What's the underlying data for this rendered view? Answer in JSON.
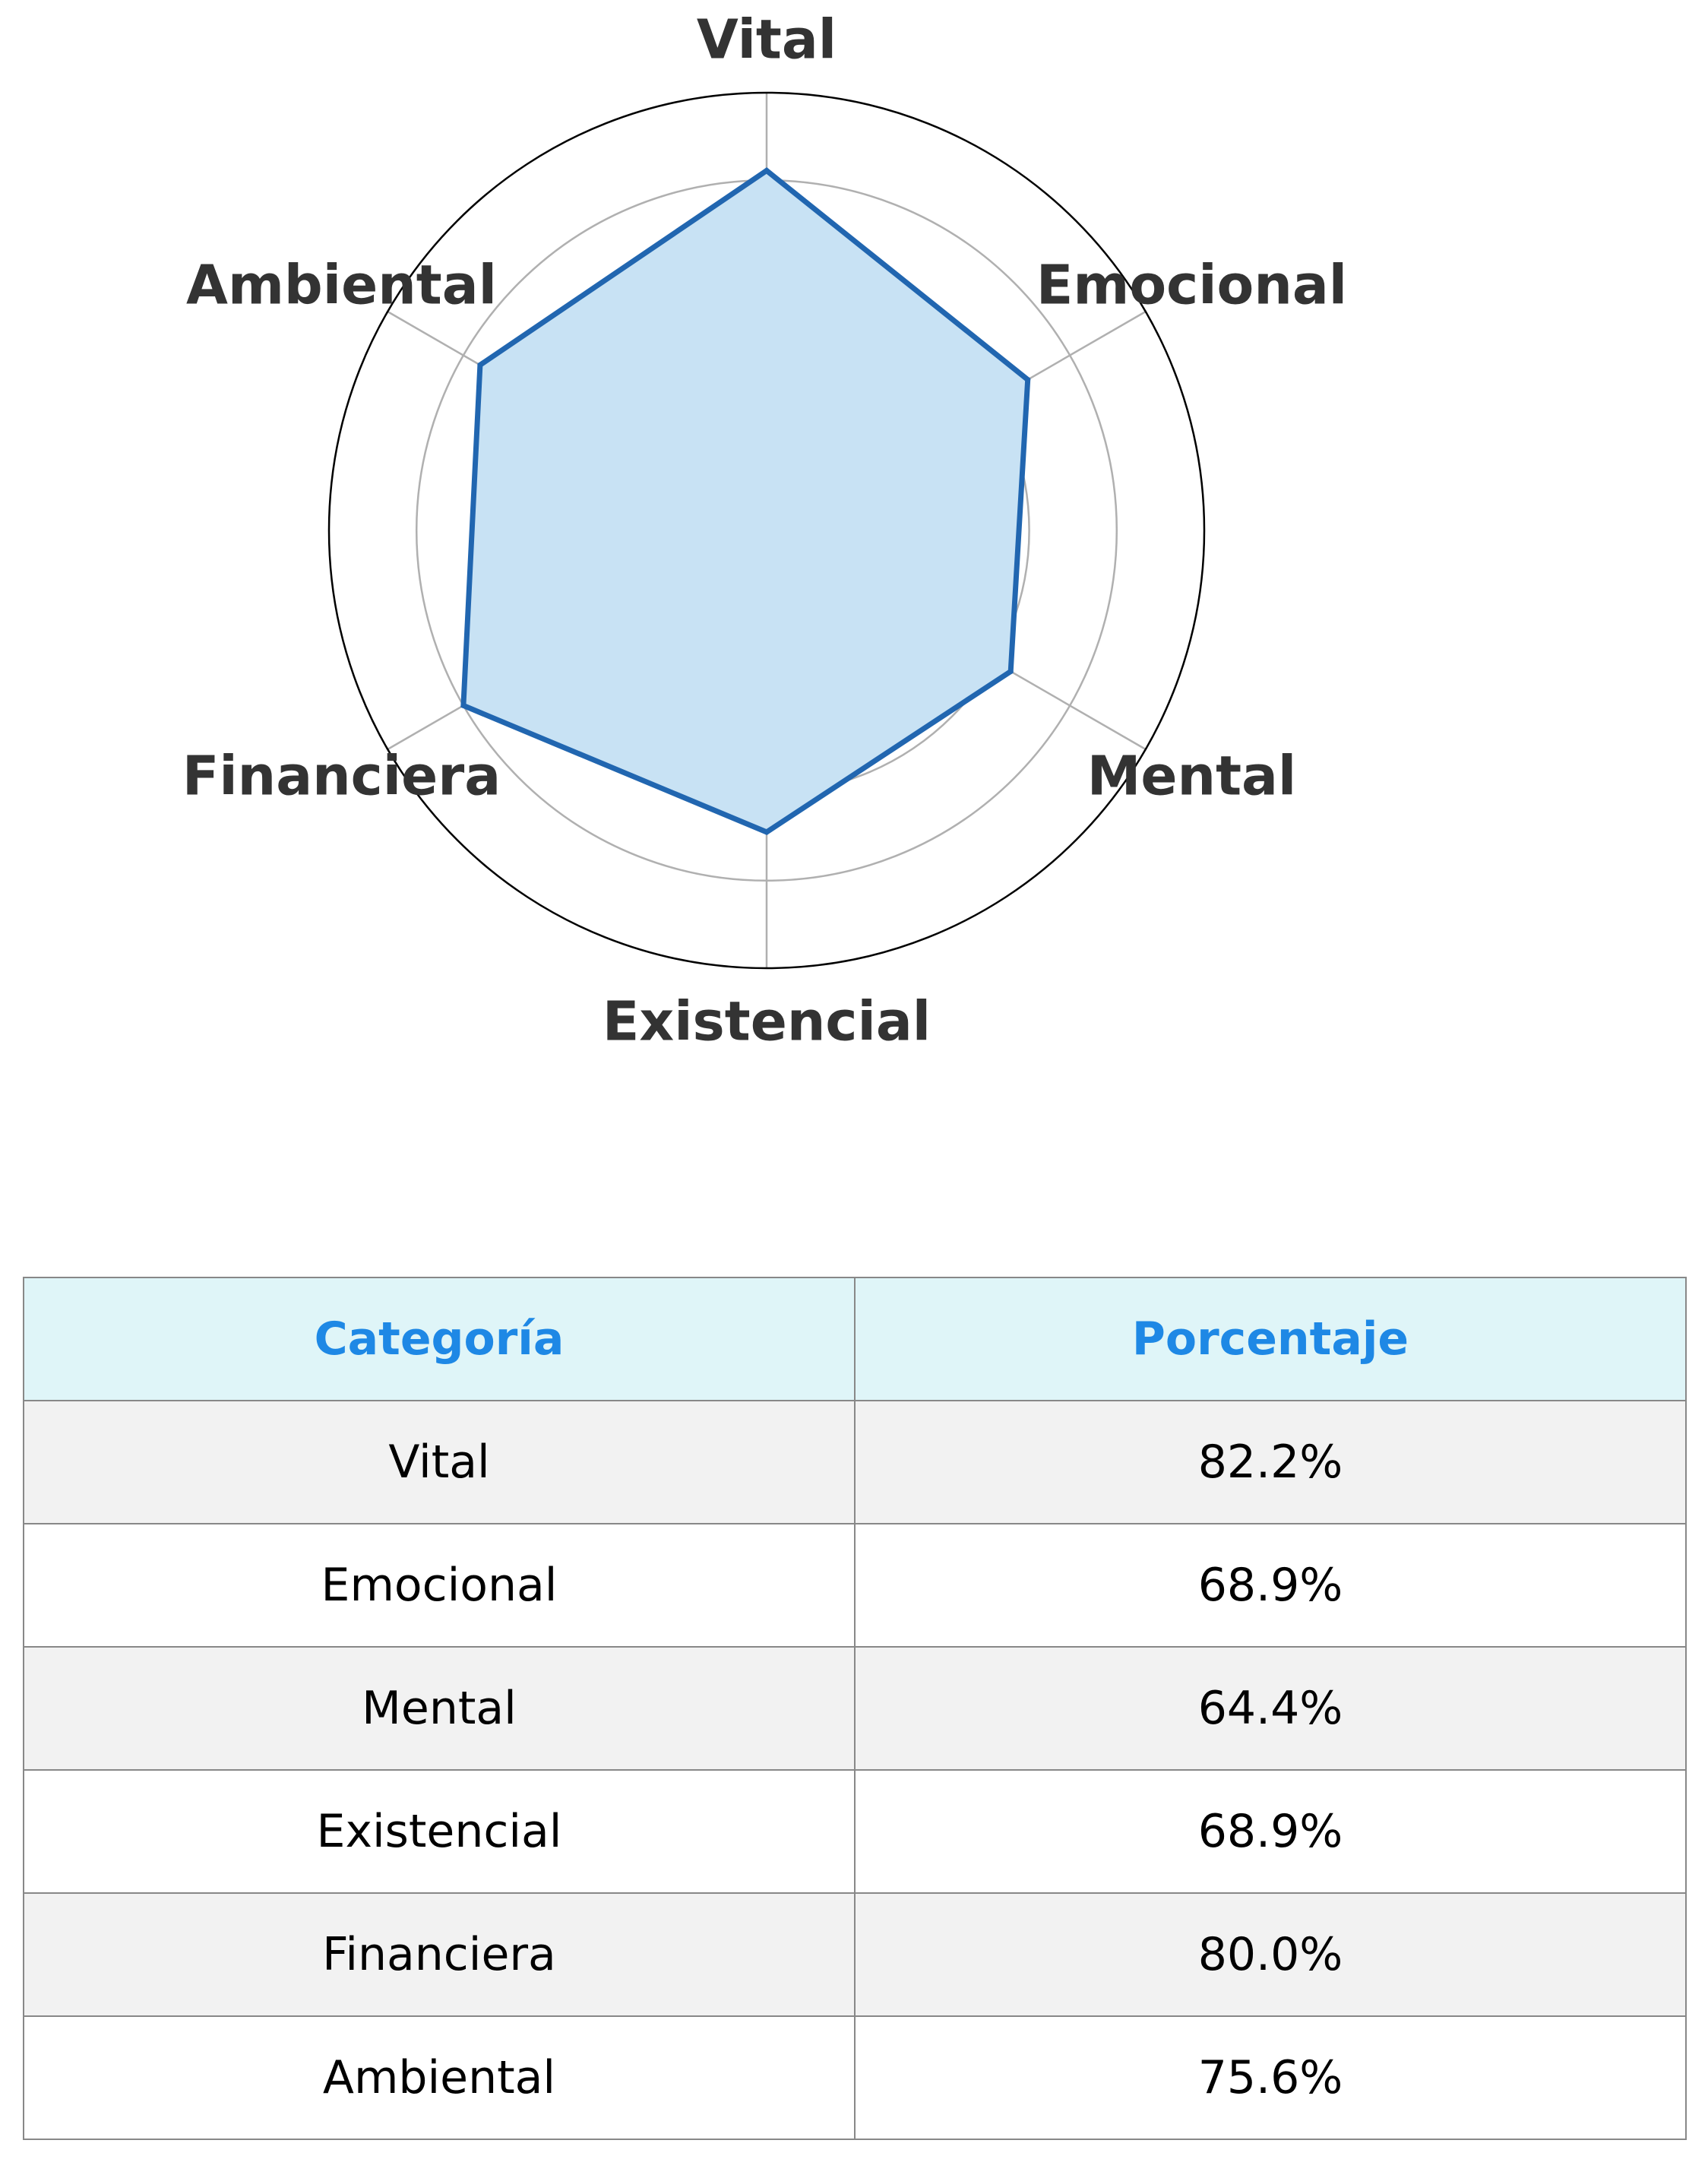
{
  "chart_data": {
    "type": "radar",
    "categories": [
      "Vital",
      "Emocional",
      "Mental",
      "Existencial",
      "Financiera",
      "Ambiental"
    ],
    "values": [
      82.2,
      68.9,
      64.4,
      68.9,
      80.0,
      75.6
    ],
    "rlim": [
      0,
      100
    ],
    "grid": true,
    "colors": {
      "line": "#2166b0",
      "fill": "#c8e2f4",
      "grid": "#b0b0b0",
      "outer": "#000000"
    }
  },
  "table": {
    "headers": [
      "Categoría",
      "Porcentaje"
    ],
    "rows": [
      [
        "Vital",
        "82.2%"
      ],
      [
        "Emocional",
        "68.9%"
      ],
      [
        "Mental",
        "64.4%"
      ],
      [
        "Existencial",
        "68.9%"
      ],
      [
        "Financiera",
        "80.0%"
      ],
      [
        "Ambiental",
        "75.6%"
      ]
    ],
    "colors": {
      "header_bg": "#dff5f8",
      "header_text": "#1e88e5",
      "row_alt_bg": "#f2f2f2",
      "border": "#888888"
    }
  }
}
